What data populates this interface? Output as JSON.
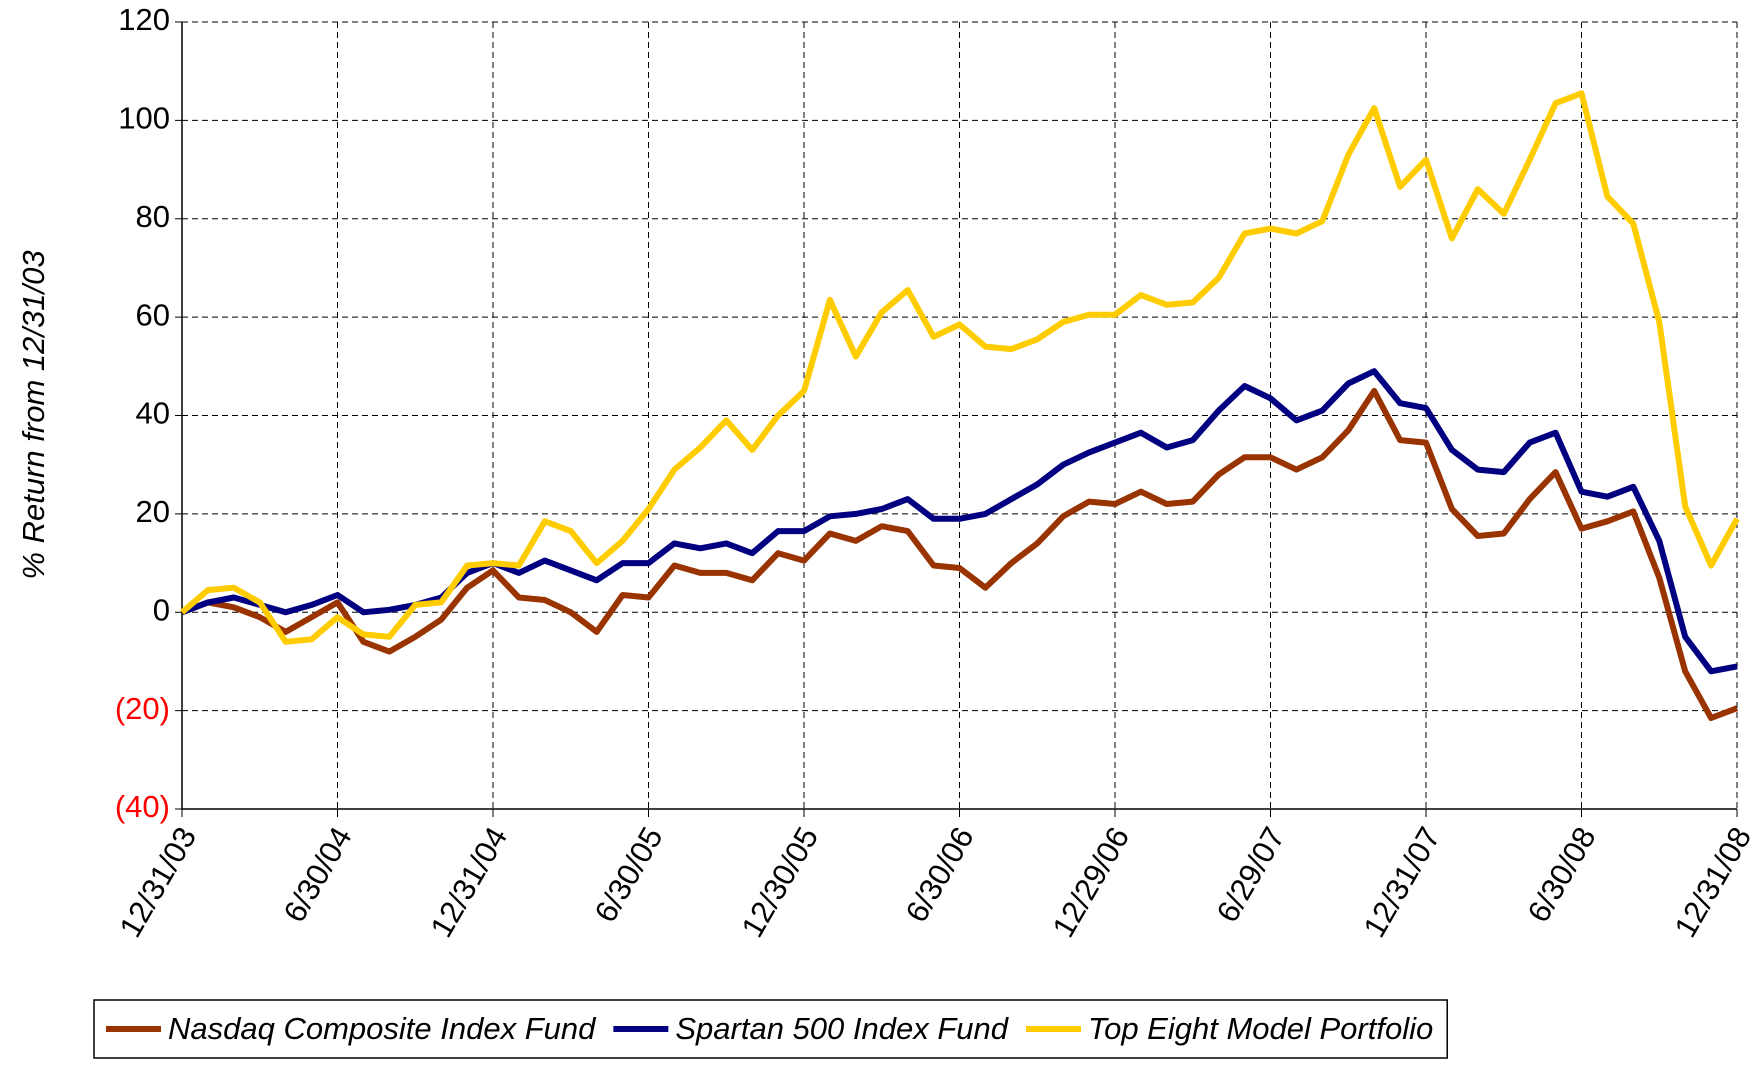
{
  "chart_data": {
    "type": "line",
    "y_label": "% Return from 12/31/03",
    "categories": [
      "12/31/03",
      null,
      null,
      null,
      null,
      null,
      "6/30/04",
      null,
      null,
      null,
      null,
      null,
      "12/31/04",
      null,
      null,
      null,
      null,
      null,
      "6/30/05",
      null,
      null,
      null,
      null,
      null,
      "12/30/05",
      null,
      null,
      null,
      null,
      null,
      "6/30/06",
      null,
      null,
      null,
      null,
      null,
      "12/29/06",
      null,
      null,
      null,
      null,
      null,
      "6/29/07",
      null,
      null,
      null,
      null,
      null,
      "12/31/07",
      null,
      null,
      null,
      null,
      null,
      "6/30/08",
      null,
      null,
      null,
      null,
      null,
      "12/31/08"
    ],
    "series": [
      {
        "name": "Nasdaq Composite Index Fund",
        "color": "#993300",
        "values": [
          0,
          2,
          1,
          -1,
          -4,
          -1,
          2,
          -6,
          -8,
          -5,
          -1.5,
          5,
          8.5,
          3,
          2.5,
          0,
          -4,
          3.5,
          3,
          9.5,
          8,
          8,
          6.5,
          12,
          10.5,
          16,
          14.5,
          17.5,
          16.5,
          9.5,
          9,
          5,
          10,
          14,
          19.5,
          22.5,
          22,
          24.5,
          22,
          22.5,
          28,
          31.5,
          31.5,
          29,
          31.5,
          37,
          45,
          35,
          34.5,
          21,
          15.5,
          16,
          23,
          28.5,
          17,
          18.5,
          20.5,
          7,
          -12,
          -21.5,
          -19.5
        ]
      },
      {
        "name": "Spartan 500 Index Fund",
        "color": "#000080",
        "values": [
          0,
          2,
          3,
          1.5,
          0,
          1.5,
          3.5,
          0,
          0.5,
          1.5,
          3,
          8,
          10,
          8,
          10.5,
          8.5,
          6.5,
          10,
          10,
          14,
          13,
          14,
          12,
          16.5,
          16.5,
          19.5,
          20,
          21,
          23,
          19,
          19,
          20,
          23,
          26,
          30,
          32.5,
          34.5,
          36.5,
          33.5,
          35,
          41,
          46,
          43.5,
          39,
          41,
          46.5,
          49,
          42.5,
          41.5,
          33,
          29,
          28.5,
          34.5,
          36.5,
          24.5,
          23.5,
          25.5,
          14.5,
          -5,
          -12,
          -11
        ]
      },
      {
        "name": "Top Eight Model Portfolio",
        "color": "#ffcc00",
        "values": [
          0,
          4.5,
          5,
          2,
          -6,
          -5.5,
          -1,
          -4.5,
          -5,
          1.5,
          2,
          9.5,
          10,
          9.5,
          18.5,
          16.5,
          10,
          14.5,
          21,
          29,
          33.5,
          39,
          33,
          40,
          45,
          63.5,
          52,
          61,
          65.5,
          56,
          58.5,
          54,
          53.5,
          55.5,
          59,
          60.5,
          60.5,
          64.5,
          62.5,
          63,
          68,
          77,
          78,
          77,
          79.5,
          93,
          102.5,
          86.5,
          92,
          76,
          86,
          81,
          92,
          103.5,
          105.5,
          84.5,
          79,
          59,
          21.5,
          9.5,
          19
        ]
      }
    ],
    "ylim": [
      -40,
      120
    ],
    "yticks": [
      {
        "value": -40,
        "label": "(40)"
      },
      {
        "value": -20,
        "label": "(20)"
      },
      0,
      20,
      40,
      60,
      80,
      100,
      120
    ],
    "negative_tick_color": "#ff0000",
    "grid": true,
    "legend": "bottom"
  }
}
